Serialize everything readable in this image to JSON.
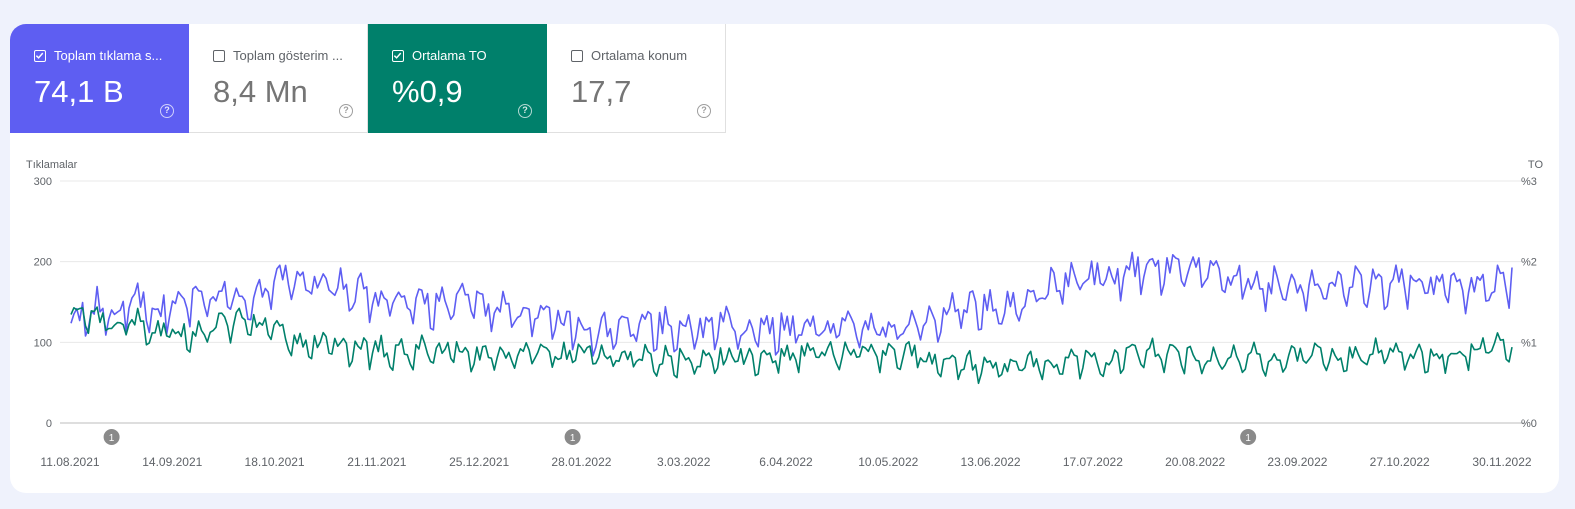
{
  "cards": [
    {
      "label": "Toplam tıklama s...",
      "value": "74,1 B",
      "checked": true,
      "accent": "#5e5ef2"
    },
    {
      "label": "Toplam gösterim ...",
      "value": "8,4 Mn",
      "checked": false,
      "accent": ""
    },
    {
      "label": "Ortalama TO",
      "value": "%0,9",
      "checked": true,
      "accent": "#00806b"
    },
    {
      "label": "Ortalama konum",
      "value": "17,7",
      "checked": false,
      "accent": ""
    }
  ],
  "help_glyph": "?",
  "chart_data": {
    "type": "line",
    "y_left_label": "Tıklamalar",
    "y_right_label": "TO",
    "y_left_ticks": [
      "300",
      "200",
      "100",
      "0"
    ],
    "y_right_ticks": [
      "%3",
      "%2",
      "%1",
      "%0"
    ],
    "ylim_left": [
      0,
      300
    ],
    "ylim_right": [
      0,
      3
    ],
    "x_ticks": [
      "11.08.2021",
      "14.09.2021",
      "18.10.2021",
      "21.11.2021",
      "25.12.2021",
      "28.01.2022",
      "3.03.2022",
      "6.04.2022",
      "10.05.2022",
      "13.06.2022",
      "17.07.2022",
      "20.08.2022",
      "23.09.2022",
      "27.10.2022",
      "30.11.2022"
    ],
    "x_start": "2021-08-11",
    "x_end": "2022-12-21",
    "annotations": [
      {
        "date": "2021-08-25",
        "text": "1"
      },
      {
        "date": "2022-01-31",
        "text": "1"
      },
      {
        "date": "2022-09-21",
        "text": "1"
      }
    ],
    "grid": true,
    "series": [
      {
        "name": "Tıklamalar",
        "axis": "left",
        "color": "#5e5ef2",
        "keyframes": [
          [
            "2021-08-11",
            130
          ],
          [
            "2021-08-18",
            148
          ],
          [
            "2021-08-25",
            132
          ],
          [
            "2021-09-01",
            152
          ],
          [
            "2021-09-10",
            140
          ],
          [
            "2021-09-20",
            152
          ],
          [
            "2021-10-01",
            160
          ],
          [
            "2021-10-10",
            158
          ],
          [
            "2021-10-18",
            170
          ],
          [
            "2021-10-25",
            180
          ],
          [
            "2021-11-01",
            172
          ],
          [
            "2021-11-10",
            170
          ],
          [
            "2021-11-21",
            158
          ],
          [
            "2021-12-01",
            155
          ],
          [
            "2021-12-10",
            150
          ],
          [
            "2021-12-20",
            150
          ],
          [
            "2021-12-25",
            148
          ],
          [
            "2022-01-05",
            140
          ],
          [
            "2022-01-15",
            140
          ],
          [
            "2022-01-25",
            125
          ],
          [
            "2022-02-05",
            115
          ],
          [
            "2022-02-15",
            118
          ],
          [
            "2022-02-25",
            120
          ],
          [
            "2022-03-03",
            118
          ],
          [
            "2022-03-15",
            116
          ],
          [
            "2022-03-25",
            120
          ],
          [
            "2022-04-06",
            118
          ],
          [
            "2022-04-20",
            118
          ],
          [
            "2022-05-01",
            120
          ],
          [
            "2022-05-10",
            118
          ],
          [
            "2022-05-25",
            118
          ],
          [
            "2022-06-01",
            125
          ],
          [
            "2022-06-13",
            148
          ],
          [
            "2022-06-25",
            145
          ],
          [
            "2022-07-05",
            148
          ],
          [
            "2022-07-17",
            172
          ],
          [
            "2022-07-25",
            178
          ],
          [
            "2022-08-05",
            182
          ],
          [
            "2022-08-15",
            190
          ],
          [
            "2022-08-25",
            190
          ],
          [
            "2022-09-05",
            186
          ],
          [
            "2022-09-15",
            180
          ],
          [
            "2022-09-23",
            172
          ],
          [
            "2022-10-05",
            170
          ],
          [
            "2022-10-15",
            172
          ],
          [
            "2022-10-27",
            172
          ],
          [
            "2022-11-05",
            174
          ],
          [
            "2022-11-15",
            172
          ],
          [
            "2022-11-25",
            168
          ],
          [
            "2022-12-05",
            170
          ],
          [
            "2022-12-15",
            168
          ],
          [
            "2022-12-21",
            175
          ]
        ],
        "amplitude": 22
      },
      {
        "name": "TO",
        "axis": "right",
        "color": "#00806b",
        "keyframes": [
          [
            "2021-08-11",
            1.3
          ],
          [
            "2021-08-18",
            1.35
          ],
          [
            "2021-08-25",
            1.25
          ],
          [
            "2021-09-01",
            1.32
          ],
          [
            "2021-09-10",
            1.12
          ],
          [
            "2021-09-20",
            1.12
          ],
          [
            "2021-10-01",
            1.22
          ],
          [
            "2021-10-10",
            1.28
          ],
          [
            "2021-10-18",
            1.2
          ],
          [
            "2021-10-25",
            1.08
          ],
          [
            "2021-11-01",
            1.0
          ],
          [
            "2021-11-10",
            0.98
          ],
          [
            "2021-11-21",
            0.92
          ],
          [
            "2021-12-01",
            0.9
          ],
          [
            "2021-12-10",
            0.9
          ],
          [
            "2021-12-20",
            0.88
          ],
          [
            "2021-12-25",
            0.86
          ],
          [
            "2022-01-05",
            0.86
          ],
          [
            "2022-01-15",
            0.88
          ],
          [
            "2022-01-25",
            0.86
          ],
          [
            "2022-02-05",
            0.85
          ],
          [
            "2022-02-15",
            0.85
          ],
          [
            "2022-02-25",
            0.82
          ],
          [
            "2022-03-03",
            0.8
          ],
          [
            "2022-03-15",
            0.78
          ],
          [
            "2022-03-25",
            0.8
          ],
          [
            "2022-04-06",
            0.82
          ],
          [
            "2022-04-20",
            0.86
          ],
          [
            "2022-05-01",
            0.88
          ],
          [
            "2022-05-10",
            0.86
          ],
          [
            "2022-05-25",
            0.86
          ],
          [
            "2022-06-01",
            0.84
          ],
          [
            "2022-06-13",
            0.76
          ],
          [
            "2022-06-25",
            0.72
          ],
          [
            "2022-07-05",
            0.72
          ],
          [
            "2022-07-17",
            0.76
          ],
          [
            "2022-07-25",
            0.76
          ],
          [
            "2022-08-05",
            0.8
          ],
          [
            "2022-08-15",
            0.88
          ],
          [
            "2022-08-25",
            0.86
          ],
          [
            "2022-09-05",
            0.8
          ],
          [
            "2022-09-15",
            0.78
          ],
          [
            "2022-09-23",
            0.82
          ],
          [
            "2022-10-05",
            0.84
          ],
          [
            "2022-10-15",
            0.84
          ],
          [
            "2022-10-27",
            0.84
          ],
          [
            "2022-11-05",
            0.88
          ],
          [
            "2022-11-15",
            0.86
          ],
          [
            "2022-11-25",
            0.84
          ],
          [
            "2022-12-05",
            0.88
          ],
          [
            "2022-12-15",
            0.96
          ],
          [
            "2022-12-21",
            1.02
          ]
        ],
        "amplitude": 0.16
      }
    ]
  }
}
